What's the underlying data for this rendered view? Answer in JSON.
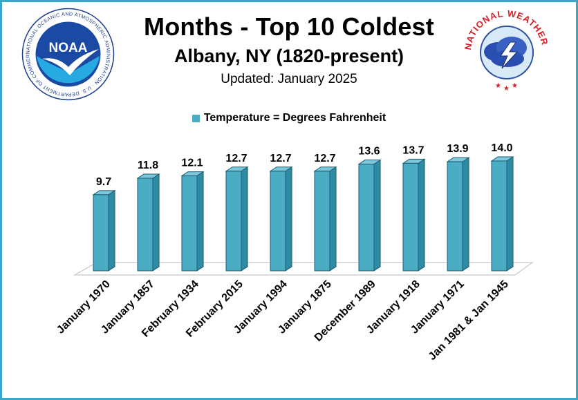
{
  "header": {
    "title": "Months - Top 10 Coldest",
    "subtitle": "Albany, NY (1820-present)",
    "updated": "Updated: January 2025"
  },
  "logos": {
    "noaa_text": "NATIONAL OCEANIC AND ATMOSPHERIC ADMINISTRATION · U.S. DEPARTMENT OF COMMERCE",
    "noaa_mark": "NOAA",
    "nws_text": "NATIONAL WEATHER SERVICE"
  },
  "colors": {
    "bar": "#4bacc6",
    "bar_dark": "#2f8aa3",
    "frame": "#3aa7c6"
  },
  "chart_data": {
    "type": "bar",
    "legend": "Temperature = Degrees Fahrenheit",
    "legend_position": "top",
    "categories": [
      "January 1970",
      "January 1857",
      "February 1934",
      "February 2015",
      "January 1994",
      "January 1875",
      "December 1989",
      "January 1918",
      "January 1971",
      "Jan 1981 & Jan 1945"
    ],
    "values": [
      9.7,
      11.8,
      12.1,
      12.7,
      12.7,
      12.7,
      13.6,
      13.7,
      13.9,
      14.0
    ],
    "data_labels": [
      "9.7",
      "11.8",
      "12.1",
      "12.7",
      "12.7",
      "12.7",
      "13.6",
      "13.7",
      "13.9",
      "14.0"
    ],
    "ylim": [
      0,
      14
    ],
    "grid": false
  }
}
